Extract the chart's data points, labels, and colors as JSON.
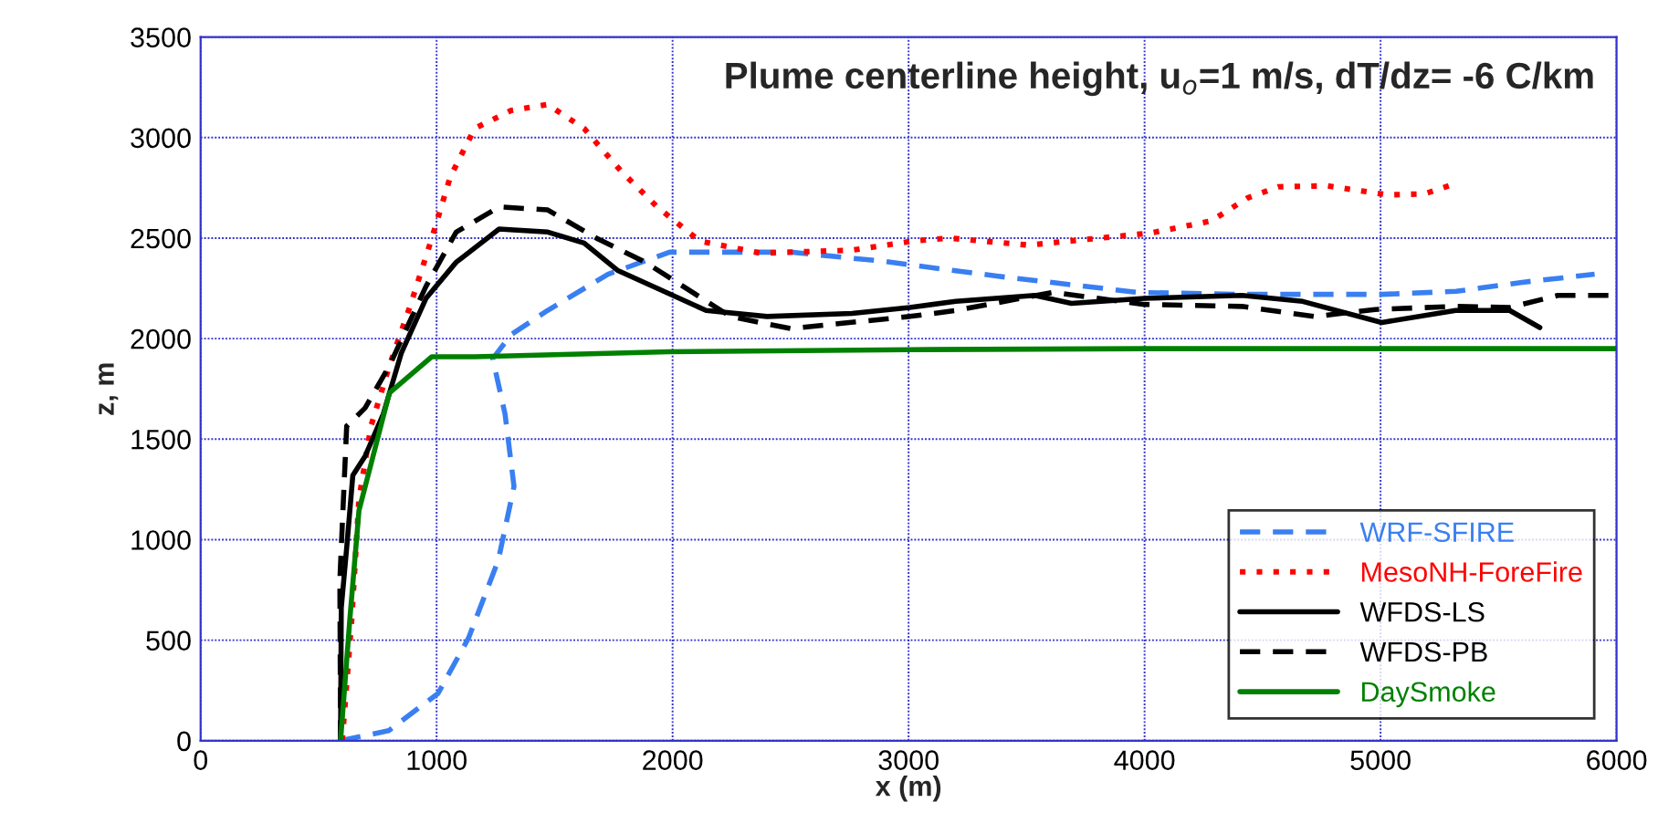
{
  "chart_data": {
    "type": "line",
    "title": "Plume centerline height, u$_{o}$=1 m/s, dT/dz= -6 C/km",
    "xlabel": "x (m)",
    "ylabel": "z, m",
    "xlim": [
      0,
      6000
    ],
    "xticks": [
      0,
      1000,
      2000,
      3000,
      4000,
      5000,
      6000
    ],
    "ylim": [
      0,
      3500
    ],
    "yticks": [
      0,
      500,
      1000,
      1500,
      2000,
      2500,
      3000,
      3500
    ],
    "grid": true,
    "legend": "bottom right",
    "marker": "none",
    "series": [
      {
        "name": "WRF-SFIRE",
        "color": "#3a7ff2",
        "line_style": "dashed",
        "x": [
          593,
          797,
          1006,
          1135,
          1262,
          1328,
          1290,
          1238,
          1316,
          1470,
          1726,
          1987,
          2500,
          2890,
          3380,
          3970,
          4413,
          5006,
          5320,
          5600,
          5907
        ],
        "values": [
          0,
          50,
          235,
          510,
          900,
          1265,
          1625,
          1900,
          2020,
          2140,
          2320,
          2430,
          2430,
          2385,
          2310,
          2230,
          2220,
          2220,
          2235,
          2280,
          2320
        ]
      },
      {
        "name": "MesoNH-ForeFire",
        "color": "#ff0000",
        "line_style": "dotted",
        "x": [
          600,
          640,
          671,
          722,
          800,
          890,
          980,
          1058,
          1161,
          1316,
          1470,
          1625,
          1780,
          1935,
          2115,
          2374,
          2760,
          3018,
          3173,
          3508,
          3767,
          4025,
          4282,
          4437,
          4567,
          4773,
          5031,
          5186,
          5302
        ],
        "values": [
          0,
          600,
          1200,
          1565,
          1865,
          2170,
          2500,
          2805,
          3045,
          3135,
          3165,
          3045,
          2835,
          2655,
          2485,
          2425,
          2440,
          2485,
          2500,
          2465,
          2495,
          2525,
          2585,
          2700,
          2755,
          2760,
          2715,
          2720,
          2765
        ]
      },
      {
        "name": "WFDS-LS",
        "color": "#000000",
        "line_style": "solid",
        "x": [
          593,
          596,
          619,
          645,
          697,
          774,
          851,
          955,
          1083,
          1265,
          1471,
          1625,
          1766,
          1935,
          2142,
          2400,
          2760,
          3005,
          3200,
          3535,
          3690,
          4000,
          4413,
          4670,
          5005,
          5318,
          5547,
          5675
        ],
        "values": [
          0,
          660,
          960,
          1320,
          1415,
          1625,
          1930,
          2200,
          2380,
          2545,
          2530,
          2475,
          2340,
          2250,
          2140,
          2110,
          2125,
          2155,
          2185,
          2215,
          2175,
          2200,
          2215,
          2185,
          2080,
          2140,
          2140,
          2055
        ]
      },
      {
        "name": "WFDS-PB",
        "color": "#000000",
        "line_style": "dashed",
        "x": [
          593,
          590,
          619,
          697,
          800,
          955,
          1083,
          1265,
          1471,
          1677,
          1884,
          2245,
          2500,
          3005,
          3200,
          3612,
          4000,
          4413,
          4721,
          4977,
          5318,
          5547,
          5752,
          6000
        ],
        "values": [
          0,
          800,
          1565,
          1655,
          1865,
          2260,
          2530,
          2655,
          2640,
          2500,
          2380,
          2110,
          2050,
          2110,
          2140,
          2230,
          2170,
          2160,
          2110,
          2145,
          2160,
          2155,
          2215,
          2215
        ]
      },
      {
        "name": "DaySmoke",
        "color": "#008000",
        "line_style": "solid",
        "x": [
          593,
          632,
          671,
          800,
          980,
          1161,
          1987,
          3005,
          4000,
          5000,
          6000
        ],
        "values": [
          0,
          600,
          1145,
          1730,
          1910,
          1910,
          1935,
          1945,
          1950,
          1950,
          1950
        ]
      }
    ]
  }
}
